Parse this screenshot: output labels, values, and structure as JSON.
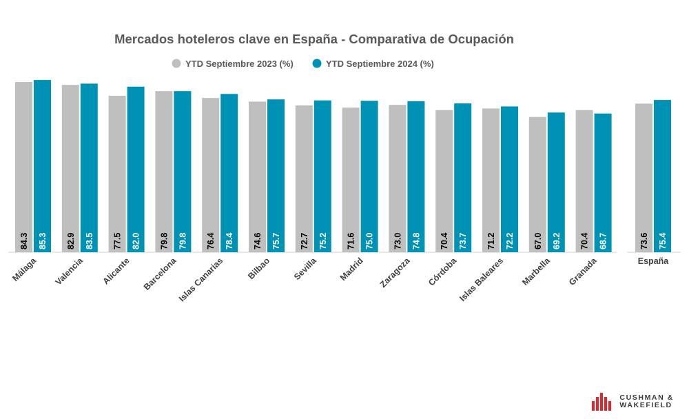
{
  "chart_data": {
    "type": "bar",
    "title": "Mercados hoteleros clave en España - Comparativa de Ocupación",
    "series": [
      {
        "name": "YTD Septiembre 2023 (%)",
        "color": "#bfbfbf",
        "label_color": "#000000",
        "values": [
          84.3,
          82.9,
          77.5,
          79.8,
          76.4,
          74.6,
          72.7,
          71.6,
          73.0,
          70.4,
          71.2,
          67.0,
          70.4
        ],
        "labels": [
          "84.3",
          "82.9",
          "77.5",
          "79.8",
          "76.4",
          "74.6",
          "72.7",
          "71.6",
          "73.0",
          "70.4",
          "71.2",
          "67.0",
          "70.4"
        ]
      },
      {
        "name": "YTD Septiembre 2024 (%)",
        "color": "#0092b5",
        "label_color": "#ffffff",
        "values": [
          85.3,
          83.5,
          82.0,
          79.8,
          78.4,
          75.7,
          75.2,
          75.0,
          74.8,
          73.7,
          72.2,
          69.2,
          68.7
        ],
        "labels": [
          "85.3",
          "83.5",
          "82.0",
          "79.8",
          "78.4",
          "75.7",
          "75.2",
          "75.0",
          "74.8",
          "73.7",
          "72.2",
          "69.2",
          "68.7"
        ]
      }
    ],
    "categories": [
      "Málaga",
      "Valencia",
      "Alicante",
      "Barcelona",
      "Islas Canarias",
      "Bilbao",
      "Sevilla",
      "Madrid",
      "Zaragoza",
      "Córdoba",
      "Islas Baleares",
      "Marbella",
      "Granada"
    ],
    "national": {
      "category": "España",
      "values": [
        73.6,
        75.4
      ],
      "labels": [
        "73.6",
        "75.4"
      ]
    },
    "xlabel": "",
    "ylabel": "",
    "ylim": [
      0,
      88
    ],
    "grid": false,
    "legend": "top-center"
  },
  "logo": {
    "line1": "CUSHMAN &",
    "line2": "WAKEFIELD",
    "color": "#e4262c"
  }
}
